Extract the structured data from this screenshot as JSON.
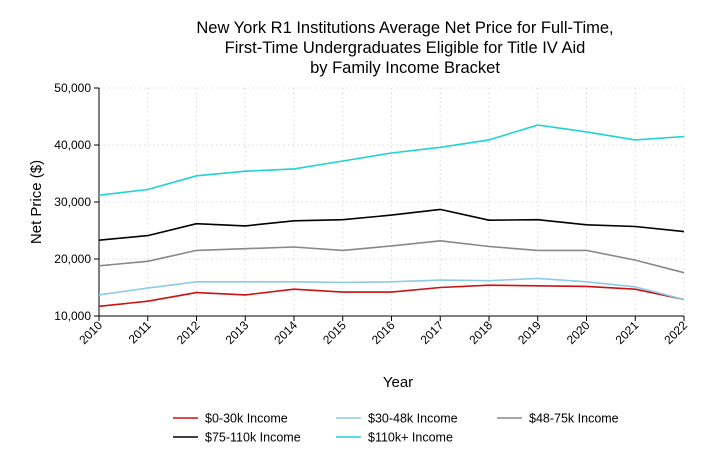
{
  "chart_data": {
    "type": "line",
    "title_lines": [
      "New York R1 Institutions Average Net Price for Full-Time,",
      "First-Time Undergraduates Eligible for Title IV Aid",
      "by Family Income Bracket"
    ],
    "xlabel": "Year",
    "ylabel": "Net Price ($)",
    "x": [
      "2010",
      "2011",
      "2012",
      "2013",
      "2014",
      "2015",
      "2016",
      "2017",
      "2018",
      "2019",
      "2020",
      "2021",
      "2022"
    ],
    "ylim": [
      10000,
      50000
    ],
    "yticks": [
      10000,
      20000,
      30000,
      40000,
      50000
    ],
    "ytick_labels": [
      "10,000",
      "20,000",
      "30,000",
      "40,000",
      "50,000"
    ],
    "grid": true,
    "legend_position": "bottom",
    "series": [
      {
        "name": "$0-30k Income",
        "color": "#cc1111",
        "values": [
          11700,
          12600,
          14100,
          13700,
          14700,
          14200,
          14200,
          15000,
          15400,
          15300,
          15200,
          14700,
          12900
        ]
      },
      {
        "name": "$30-48k Income",
        "color": "#8ecae6",
        "values": [
          13700,
          14900,
          16000,
          16000,
          16000,
          15900,
          16000,
          16300,
          16200,
          16600,
          16000,
          15100,
          12900
        ]
      },
      {
        "name": "$48-75k Income",
        "color": "#888888",
        "values": [
          18800,
          19600,
          21500,
          21800,
          22100,
          21500,
          22300,
          23200,
          22200,
          21500,
          21500,
          19800,
          17600
        ]
      },
      {
        "name": "$75-110k Income",
        "color": "#000000",
        "values": [
          23300,
          24100,
          26200,
          25800,
          26700,
          26900,
          27700,
          28700,
          26800,
          26900,
          26000,
          25700,
          24800
        ]
      },
      {
        "name": "$110k+ Income",
        "color": "#20d2d2",
        "values": [
          31200,
          32200,
          34600,
          35400,
          35800,
          37200,
          38600,
          39600,
          40900,
          43500,
          42300,
          40900,
          41500
        ]
      }
    ]
  }
}
